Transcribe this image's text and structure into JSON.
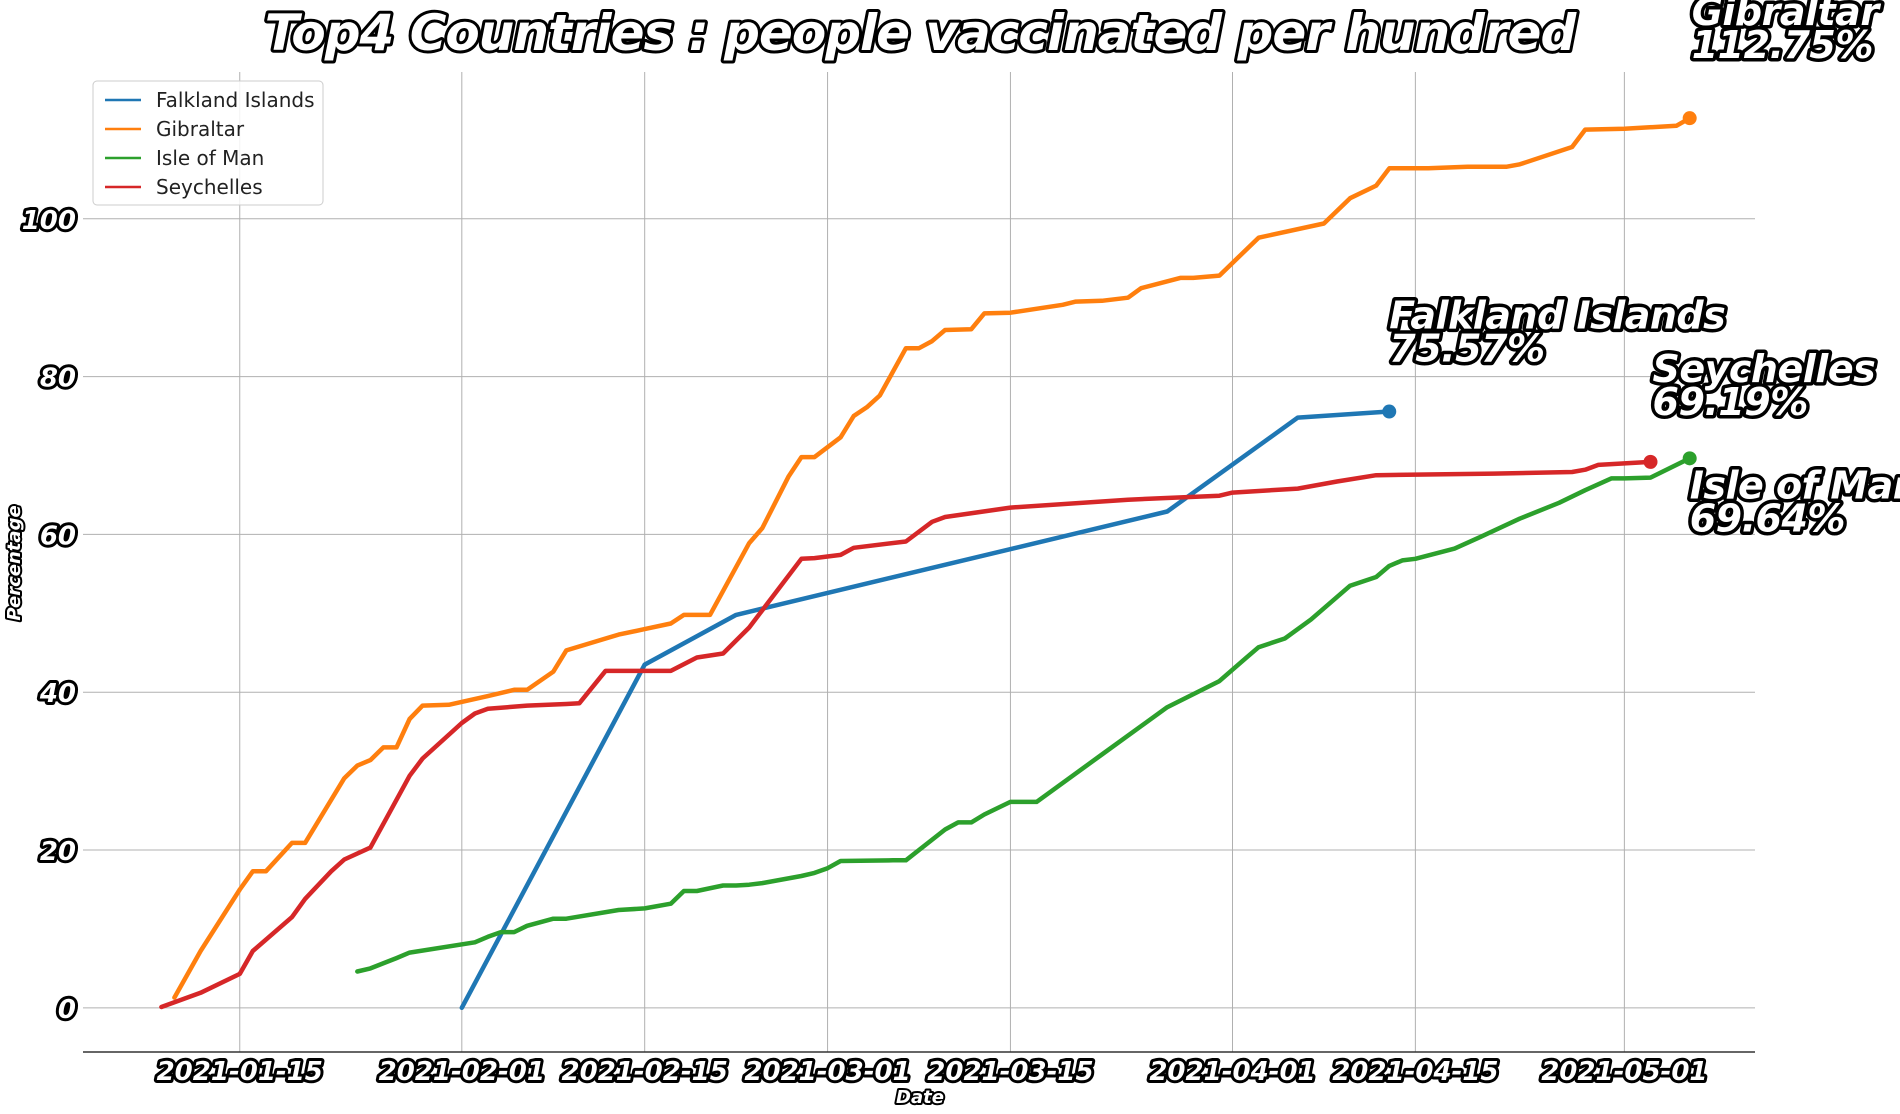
{
  "chart_data": {
    "type": "line",
    "title": "Top4 Countries : people vaccinated per hundred",
    "xlabel": "Date",
    "ylabel": "Percentage",
    "x_ticks": [
      "2021-01-15",
      "2021-02-01",
      "2021-02-15",
      "2021-03-01",
      "2021-03-15",
      "2021-04-01",
      "2021-04-15",
      "2021-05-01"
    ],
    "y_ticks": [
      0,
      20,
      40,
      60,
      80,
      100
    ],
    "xlim": [
      "2021-01-03",
      "2021-05-11"
    ],
    "ylim": [
      -5.6,
      118.6
    ],
    "grid": true,
    "legend_position": "top-left",
    "series": [
      {
        "name": "Falkland Islands",
        "color": "#1f77b4",
        "end_label": "75.57%",
        "points": [
          [
            "2021-02-01",
            0.0
          ],
          [
            "2021-02-15",
            43.5
          ],
          [
            "2021-02-22",
            49.8
          ],
          [
            "2021-03-27",
            62.9
          ],
          [
            "2021-04-06",
            74.8
          ],
          [
            "2021-04-13",
            75.57
          ]
        ]
      },
      {
        "name": "Gibraltar",
        "color": "#ff7f0e",
        "end_label": "112.75%",
        "points": [
          [
            "2021-01-10",
            1.3
          ],
          [
            "2021-01-12",
            7.2
          ],
          [
            "2021-01-15",
            15.0
          ],
          [
            "2021-01-16",
            17.3
          ],
          [
            "2021-01-17",
            17.3
          ],
          [
            "2021-01-19",
            20.9
          ],
          [
            "2021-01-20",
            20.9
          ],
          [
            "2021-01-23",
            29.1
          ],
          [
            "2021-01-24",
            30.7
          ],
          [
            "2021-01-25",
            31.4
          ],
          [
            "2021-01-26",
            33.0
          ],
          [
            "2021-01-27",
            33.0
          ],
          [
            "2021-01-28",
            36.6
          ],
          [
            "2021-01-29",
            38.3
          ],
          [
            "2021-01-31",
            38.4
          ],
          [
            "2021-02-03",
            39.5
          ],
          [
            "2021-02-05",
            40.3
          ],
          [
            "2021-02-06",
            40.3
          ],
          [
            "2021-02-08",
            42.6
          ],
          [
            "2021-02-09",
            45.3
          ],
          [
            "2021-02-13",
            47.3
          ],
          [
            "2021-02-15",
            48.0
          ],
          [
            "2021-02-17",
            48.7
          ],
          [
            "2021-02-18",
            49.8
          ],
          [
            "2021-02-20",
            49.8
          ],
          [
            "2021-02-23",
            58.9
          ],
          [
            "2021-02-24",
            60.8
          ],
          [
            "2021-02-26",
            67.3
          ],
          [
            "2021-02-27",
            69.8
          ],
          [
            "2021-02-28",
            69.8
          ],
          [
            "2021-03-02",
            72.3
          ],
          [
            "2021-03-03",
            75.0
          ],
          [
            "2021-03-04",
            76.1
          ],
          [
            "2021-03-05",
            77.6
          ],
          [
            "2021-03-07",
            83.6
          ],
          [
            "2021-03-08",
            83.6
          ],
          [
            "2021-03-09",
            84.5
          ],
          [
            "2021-03-10",
            85.9
          ],
          [
            "2021-03-12",
            86.0
          ],
          [
            "2021-03-13",
            88.0
          ],
          [
            "2021-03-15",
            88.1
          ],
          [
            "2021-03-19",
            89.1
          ],
          [
            "2021-03-20",
            89.5
          ],
          [
            "2021-03-22",
            89.6
          ],
          [
            "2021-03-24",
            90.0
          ],
          [
            "2021-03-25",
            91.2
          ],
          [
            "2021-03-28",
            92.5
          ],
          [
            "2021-03-29",
            92.5
          ],
          [
            "2021-03-31",
            92.8
          ],
          [
            "2021-04-03",
            97.6
          ],
          [
            "2021-04-08",
            99.4
          ],
          [
            "2021-04-10",
            102.6
          ],
          [
            "2021-04-12",
            104.2
          ],
          [
            "2021-04-13",
            106.4
          ],
          [
            "2021-04-16",
            106.4
          ],
          [
            "2021-04-19",
            106.6
          ],
          [
            "2021-04-22",
            106.6
          ],
          [
            "2021-04-23",
            106.9
          ],
          [
            "2021-04-27",
            109.1
          ],
          [
            "2021-04-28",
            111.3
          ],
          [
            "2021-05-01",
            111.4
          ],
          [
            "2021-05-05",
            111.8
          ],
          [
            "2021-05-06",
            112.75
          ]
        ]
      },
      {
        "name": "Isle of Man",
        "color": "#2ca02c",
        "end_label": "69.64%",
        "points": [
          [
            "2021-01-24",
            4.6
          ],
          [
            "2021-01-25",
            5.0
          ],
          [
            "2021-01-27",
            6.3
          ],
          [
            "2021-01-28",
            7.0
          ],
          [
            "2021-02-02",
            8.3
          ],
          [
            "2021-02-03",
            9.0
          ],
          [
            "2021-02-04",
            9.6
          ],
          [
            "2021-02-05",
            9.6
          ],
          [
            "2021-02-06",
            10.4
          ],
          [
            "2021-02-08",
            11.3
          ],
          [
            "2021-02-09",
            11.3
          ],
          [
            "2021-02-13",
            12.4
          ],
          [
            "2021-02-15",
            12.6
          ],
          [
            "2021-02-17",
            13.2
          ],
          [
            "2021-02-18",
            14.8
          ],
          [
            "2021-02-19",
            14.8
          ],
          [
            "2021-02-21",
            15.5
          ],
          [
            "2021-02-22",
            15.5
          ],
          [
            "2021-02-23",
            15.6
          ],
          [
            "2021-02-24",
            15.8
          ],
          [
            "2021-02-27",
            16.7
          ],
          [
            "2021-02-28",
            17.1
          ],
          [
            "2021-03-01",
            17.7
          ],
          [
            "2021-03-02",
            18.6
          ],
          [
            "2021-03-06",
            18.7
          ],
          [
            "2021-03-07",
            18.7
          ],
          [
            "2021-03-10",
            22.6
          ],
          [
            "2021-03-11",
            23.5
          ],
          [
            "2021-03-12",
            23.5
          ],
          [
            "2021-03-13",
            24.5
          ],
          [
            "2021-03-15",
            26.1
          ],
          [
            "2021-03-17",
            26.1
          ],
          [
            "2021-03-22",
            32.1
          ],
          [
            "2021-03-27",
            38.1
          ],
          [
            "2021-03-31",
            41.4
          ],
          [
            "2021-04-02",
            44.3
          ],
          [
            "2021-04-03",
            45.7
          ],
          [
            "2021-04-05",
            46.8
          ],
          [
            "2021-04-07",
            49.2
          ],
          [
            "2021-04-10",
            53.5
          ],
          [
            "2021-04-12",
            54.6
          ],
          [
            "2021-04-13",
            56.0
          ],
          [
            "2021-04-14",
            56.7
          ],
          [
            "2021-04-15",
            56.9
          ],
          [
            "2021-04-18",
            58.2
          ],
          [
            "2021-04-20",
            59.7
          ],
          [
            "2021-04-23",
            62.0
          ],
          [
            "2021-04-26",
            64.0
          ],
          [
            "2021-04-28",
            65.6
          ],
          [
            "2021-04-30",
            67.1
          ],
          [
            "2021-05-01",
            67.1
          ],
          [
            "2021-05-03",
            67.2
          ],
          [
            "2021-05-06",
            69.64
          ]
        ]
      },
      {
        "name": "Seychelles",
        "color": "#d62728",
        "end_label": "69.19%",
        "points": [
          [
            "2021-01-09",
            0.1
          ],
          [
            "2021-01-12",
            1.9
          ],
          [
            "2021-01-15",
            4.3
          ],
          [
            "2021-01-16",
            7.2
          ],
          [
            "2021-01-19",
            11.5
          ],
          [
            "2021-01-20",
            13.8
          ],
          [
            "2021-01-22",
            17.3
          ],
          [
            "2021-01-23",
            18.8
          ],
          [
            "2021-01-25",
            20.3
          ],
          [
            "2021-01-28",
            29.4
          ],
          [
            "2021-01-29",
            31.6
          ],
          [
            "2021-02-01",
            36.1
          ],
          [
            "2021-02-02",
            37.3
          ],
          [
            "2021-02-03",
            37.9
          ],
          [
            "2021-02-06",
            38.3
          ],
          [
            "2021-02-09",
            38.5
          ],
          [
            "2021-02-10",
            38.6
          ],
          [
            "2021-02-12",
            42.7
          ],
          [
            "2021-02-17",
            42.7
          ],
          [
            "2021-02-19",
            44.4
          ],
          [
            "2021-02-21",
            44.9
          ],
          [
            "2021-02-23",
            48.2
          ],
          [
            "2021-02-27",
            56.9
          ],
          [
            "2021-02-28",
            57.0
          ],
          [
            "2021-03-02",
            57.4
          ],
          [
            "2021-03-03",
            58.3
          ],
          [
            "2021-03-07",
            59.1
          ],
          [
            "2021-03-09",
            61.6
          ],
          [
            "2021-03-10",
            62.2
          ],
          [
            "2021-03-15",
            63.4
          ],
          [
            "2021-03-24",
            64.4
          ],
          [
            "2021-03-31",
            64.9
          ],
          [
            "2021-04-01",
            65.3
          ],
          [
            "2021-04-06",
            65.8
          ],
          [
            "2021-04-09",
            66.7
          ],
          [
            "2021-04-12",
            67.5
          ],
          [
            "2021-04-21",
            67.7
          ],
          [
            "2021-04-27",
            67.9
          ],
          [
            "2021-04-28",
            68.2
          ],
          [
            "2021-04-29",
            68.8
          ],
          [
            "2021-05-03",
            69.19
          ]
        ]
      }
    ]
  }
}
